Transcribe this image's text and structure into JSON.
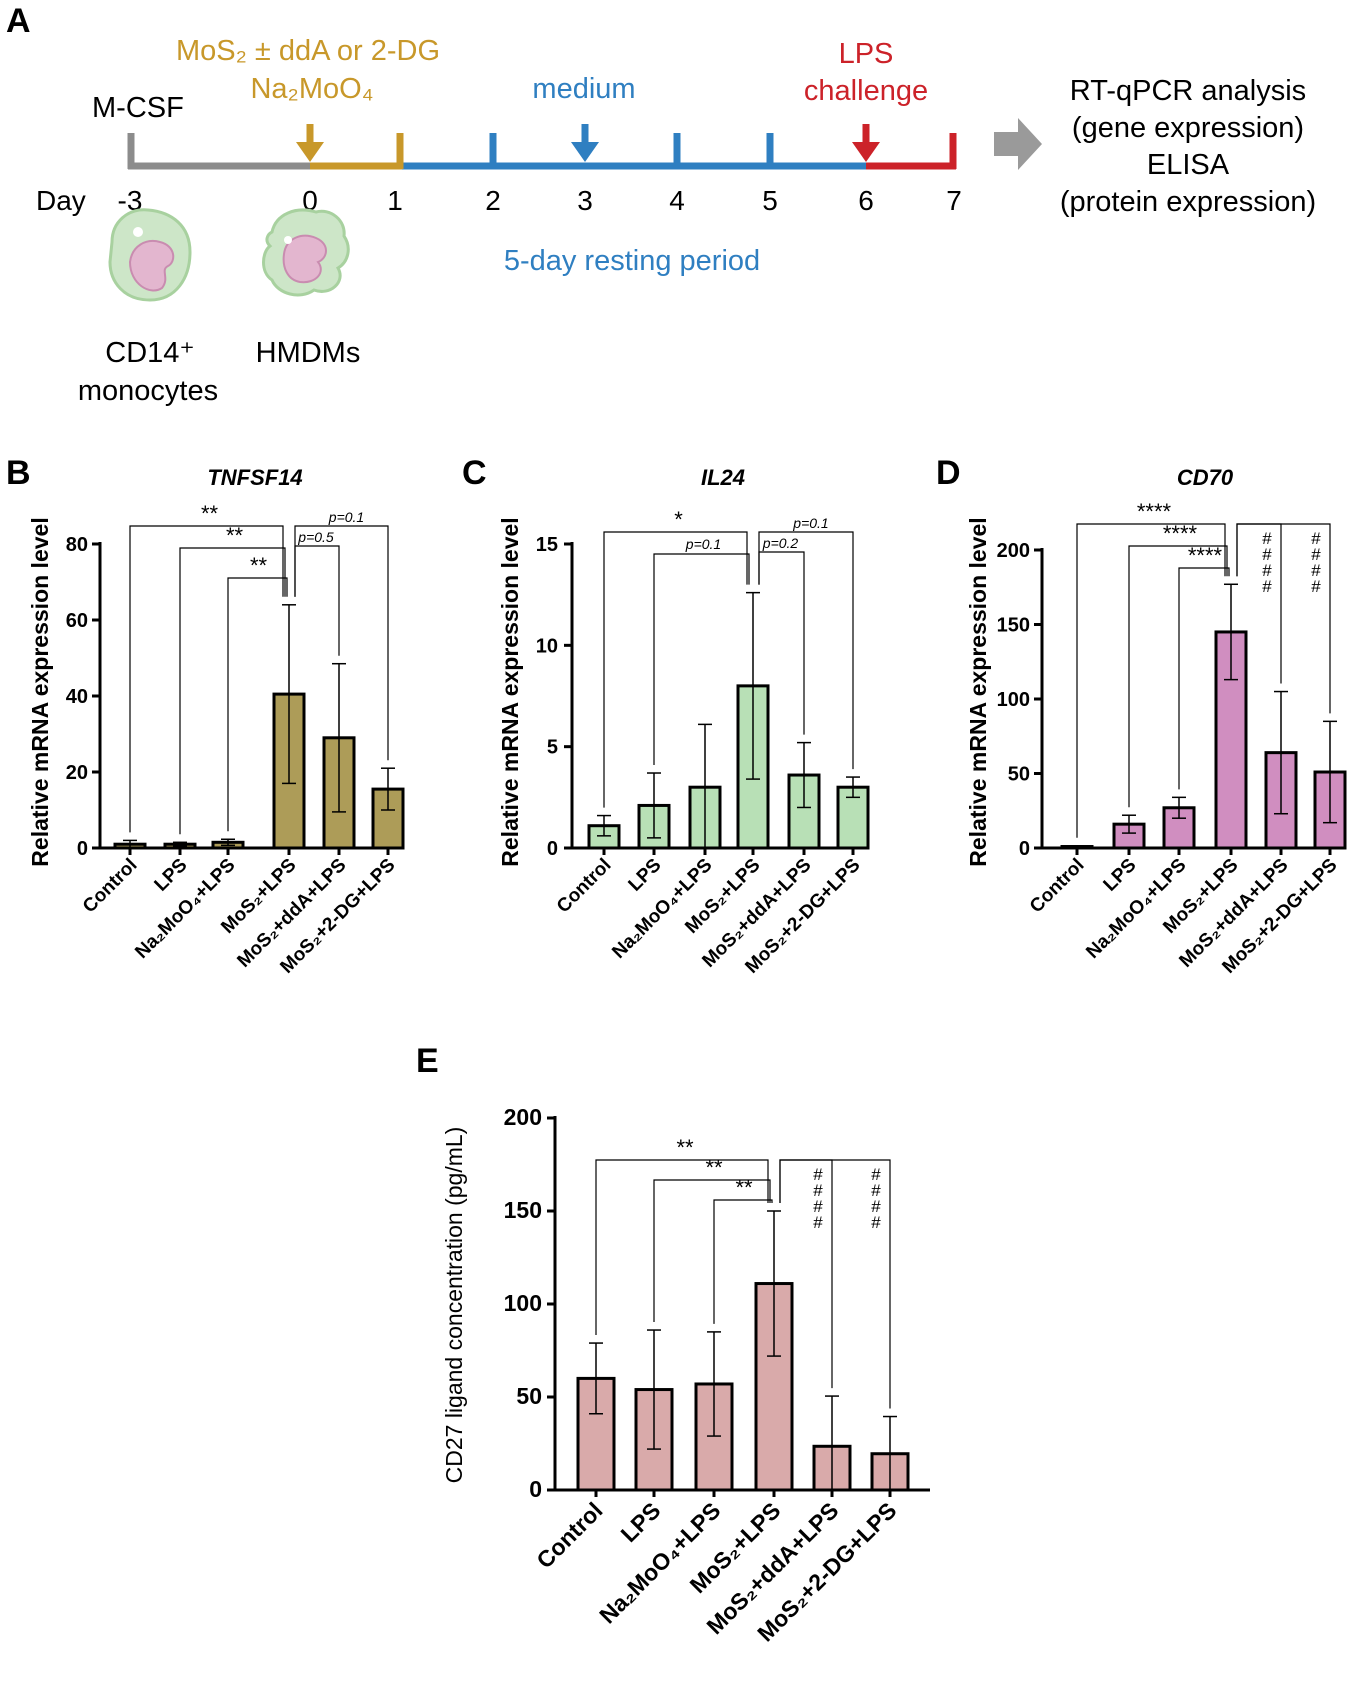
{
  "panel_letters": {
    "a": "A",
    "b": "B",
    "c": "C",
    "d": "D",
    "e": "E"
  },
  "timeline": {
    "mcsf": "M-CSF",
    "treatment_line1": "MoS₂ ± ddA or 2-DG",
    "treatment_line2": "Na₂MoO₄",
    "medium": "medium",
    "lps_line1": "LPS",
    "lps_line2": "challenge",
    "day_label": "Day",
    "days": [
      "-3",
      "0",
      "1",
      "2",
      "3",
      "4",
      "5",
      "6",
      "7"
    ],
    "resting": "5-day resting period",
    "cell1_line1": "CD14⁺",
    "cell1_line2": "monocytes",
    "cell2": "HMDMs",
    "analysis": [
      "RT-qPCR analysis",
      "(gene expression)",
      "ELISA",
      "(protein expression)"
    ],
    "colors": {
      "grey": "#8c8c8c",
      "gold": "#c8982a",
      "blue": "#2f7fc1",
      "red": "#cc2229",
      "arrow": "#9a9a9a"
    }
  },
  "chart_data": [
    {
      "id": "B",
      "type": "bar",
      "title": "TNFSF14",
      "ylabel": "Relative mRNA expression level",
      "categories": [
        "Control",
        "LPS",
        "Na₂MoO₄+LPS",
        "MoS₂+LPS",
        "MoS₂+ddA+LPS",
        "MoS₂+2-DG+LPS"
      ],
      "values": [
        1,
        1,
        1.5,
        40.5,
        29,
        15.5
      ],
      "errors": [
        1,
        0.5,
        0.8,
        23.5,
        19.5,
        5.5
      ],
      "ylim": [
        0,
        80
      ],
      "yticks": [
        0,
        20,
        40,
        60,
        80
      ],
      "bar_color": "#ad9c58",
      "annotations": [
        {
          "from": 0,
          "to": 3,
          "text": "**"
        },
        {
          "from": 1,
          "to": 3,
          "text": "**"
        },
        {
          "from": 2,
          "to": 3,
          "text": "**"
        },
        {
          "from": 3,
          "to": 5,
          "text": "p=0.1"
        },
        {
          "from": 3,
          "to": 4,
          "text": "p=0.5"
        }
      ]
    },
    {
      "id": "C",
      "type": "bar",
      "title": "IL24",
      "ylabel": "Relative mRNA expression level",
      "categories": [
        "Control",
        "LPS",
        "Na₂MoO₄+LPS",
        "MoS₂+LPS",
        "MoS₂+ddA+LPS",
        "MoS₂+2-DG+LPS"
      ],
      "values": [
        1.1,
        2.1,
        3.0,
        8.0,
        3.6,
        3.0
      ],
      "errors": [
        0.5,
        1.6,
        3.1,
        4.6,
        1.6,
        0.5
      ],
      "ylim": [
        0,
        15
      ],
      "yticks": [
        0,
        5,
        10,
        15
      ],
      "bar_color": "#b8e0b6",
      "annotations": [
        {
          "from": 0,
          "to": 3,
          "text": "*"
        },
        {
          "from": 1,
          "to": 3,
          "text": "p=0.1"
        },
        {
          "from": 3,
          "to": 5,
          "text": "p=0.1"
        },
        {
          "from": 3,
          "to": 4,
          "text": "p=0.2"
        }
      ]
    },
    {
      "id": "D",
      "type": "bar",
      "title": "CD70",
      "ylabel": "Relative mRNA expression level",
      "categories": [
        "Control",
        "LPS",
        "Na₂MoO₄+LPS",
        "MoS₂+LPS",
        "MoS₂+ddA+LPS",
        "MoS₂+2-DG+LPS"
      ],
      "values": [
        1,
        16,
        27,
        145,
        64,
        51
      ],
      "errors": [
        0.5,
        6,
        7,
        32,
        41,
        34
      ],
      "ylim": [
        0,
        200
      ],
      "yticks": [
        0,
        50,
        100,
        150,
        200
      ],
      "bar_color": "#d08ec0",
      "annotations": [
        {
          "from": 0,
          "to": 3,
          "text": "****"
        },
        {
          "from": 1,
          "to": 3,
          "text": "****"
        },
        {
          "from": 2,
          "to": 3,
          "text": "****"
        },
        {
          "from": 3,
          "to": 4,
          "text": "####"
        },
        {
          "from": 3,
          "to": 5,
          "text": "####"
        }
      ]
    },
    {
      "id": "E",
      "type": "bar",
      "title": "",
      "ylabel": "CD27 ligand concentration (pg/mL)",
      "categories": [
        "Control",
        "LPS",
        "Na₂MoO₄+LPS",
        "MoS₂+LPS",
        "MoS₂+ddA+LPS",
        "MoS₂+2-DG+LPS"
      ],
      "values": [
        60,
        54,
        57,
        111,
        23.5,
        19.5
      ],
      "errors": [
        19,
        32,
        28,
        39,
        27,
        20
      ],
      "ylim": [
        0,
        200
      ],
      "yticks": [
        0,
        50,
        100,
        150,
        200
      ],
      "bar_color": "#d9aaaa",
      "annotations": [
        {
          "from": 0,
          "to": 3,
          "text": "**"
        },
        {
          "from": 1,
          "to": 3,
          "text": "**"
        },
        {
          "from": 2,
          "to": 3,
          "text": "**"
        },
        {
          "from": 3,
          "to": 4,
          "text": "####"
        },
        {
          "from": 3,
          "to": 5,
          "text": "####"
        }
      ]
    }
  ]
}
